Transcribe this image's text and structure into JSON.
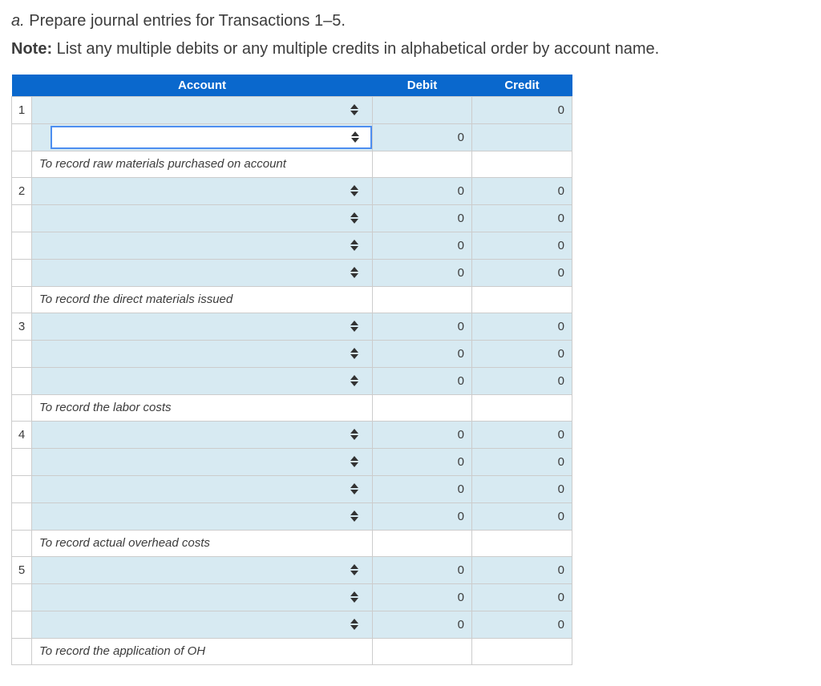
{
  "colors": {
    "header_bg": "#0a68cd",
    "cell_bg": "#d7eaf2",
    "focus_border": "#4d8ef0",
    "grid_border": "#cccccc",
    "text": "#3c3c3c",
    "icon": "#333333"
  },
  "instructions": {
    "prefix": "a.",
    "title": " Prepare journal entries for Transactions 1–5.",
    "note_label": "Note:",
    "note_text": " List any multiple debits or any multiple credits in alphabetical order by account name."
  },
  "table": {
    "headers": {
      "number": "",
      "account": "Account",
      "debit": "Debit",
      "credit": "Credit"
    },
    "select_icon": "up-down-arrows",
    "entries": [
      {
        "number": "1",
        "memo": "To record raw materials purchased on account",
        "rows": [
          {
            "account_value": "",
            "debit": "",
            "credit": "0",
            "focused": false
          },
          {
            "account_value": "",
            "debit": "0",
            "credit": "",
            "focused": true
          }
        ]
      },
      {
        "number": "2",
        "memo": "To record the direct materials issued",
        "rows": [
          {
            "account_value": "",
            "debit": "0",
            "credit": "0",
            "focused": false
          },
          {
            "account_value": "",
            "debit": "0",
            "credit": "0",
            "focused": false
          },
          {
            "account_value": "",
            "debit": "0",
            "credit": "0",
            "focused": false
          },
          {
            "account_value": "",
            "debit": "0",
            "credit": "0",
            "focused": false
          }
        ]
      },
      {
        "number": "3",
        "memo": "To record the labor costs",
        "rows": [
          {
            "account_value": "",
            "debit": "0",
            "credit": "0",
            "focused": false
          },
          {
            "account_value": "",
            "debit": "0",
            "credit": "0",
            "focused": false
          },
          {
            "account_value": "",
            "debit": "0",
            "credit": "0",
            "focused": false
          }
        ]
      },
      {
        "number": "4",
        "memo": "To record actual overhead costs",
        "rows": [
          {
            "account_value": "",
            "debit": "0",
            "credit": "0",
            "focused": false
          },
          {
            "account_value": "",
            "debit": "0",
            "credit": "0",
            "focused": false
          },
          {
            "account_value": "",
            "debit": "0",
            "credit": "0",
            "focused": false
          },
          {
            "account_value": "",
            "debit": "0",
            "credit": "0",
            "focused": false
          }
        ]
      },
      {
        "number": "5",
        "memo": "To record the application of OH",
        "rows": [
          {
            "account_value": "",
            "debit": "0",
            "credit": "0",
            "focused": false
          },
          {
            "account_value": "",
            "debit": "0",
            "credit": "0",
            "focused": false
          },
          {
            "account_value": "",
            "debit": "0",
            "credit": "0",
            "focused": false
          }
        ]
      }
    ]
  }
}
